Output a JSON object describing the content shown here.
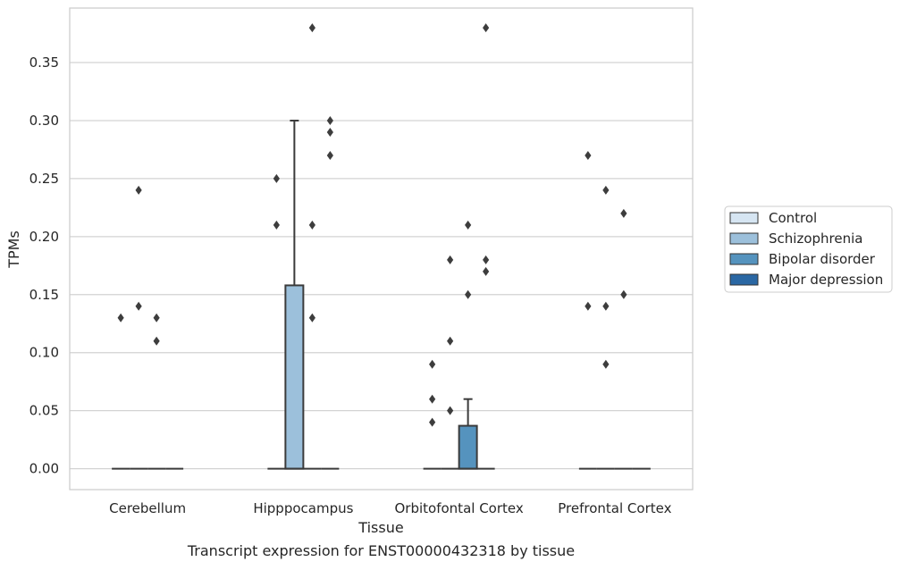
{
  "chart_data": {
    "type": "box",
    "title": "",
    "caption": "Transcript expression for ENST00000432318 by tissue",
    "xlabel": "Tissue",
    "ylabel": "TPMs",
    "ylim": [
      -0.018,
      0.397
    ],
    "yticks": [
      "0.00",
      "0.05",
      "0.10",
      "0.15",
      "0.20",
      "0.25",
      "0.30",
      "0.35"
    ],
    "grid": true,
    "legend_position": "right",
    "categories": [
      "Cerebellum",
      "Hipppocampus",
      "Orbitofontal Cortex",
      "Prefrontal Cortex"
    ],
    "series": [
      {
        "name": "Control",
        "color": "#d6e5f2"
      },
      {
        "name": "Schizophrenia",
        "color": "#9cc0db"
      },
      {
        "name": "Bipolar disorder",
        "color": "#5593be"
      },
      {
        "name": "Major depression",
        "color": "#2a67a3"
      }
    ],
    "boxes": [
      {
        "category": "Cerebellum",
        "series": "Control",
        "q1": 0,
        "median": 0,
        "q3": 0,
        "whisker_low": 0,
        "whisker_high": 0,
        "outliers": [
          0.13
        ]
      },
      {
        "category": "Cerebellum",
        "series": "Schizophrenia",
        "q1": 0,
        "median": 0,
        "q3": 0,
        "whisker_low": 0,
        "whisker_high": 0,
        "outliers": [
          0.14,
          0.24
        ]
      },
      {
        "category": "Cerebellum",
        "series": "Bipolar disorder",
        "q1": 0,
        "median": 0,
        "q3": 0,
        "whisker_low": 0,
        "whisker_high": 0,
        "outliers": [
          0.13,
          0.11
        ]
      },
      {
        "category": "Cerebellum",
        "series": "Major depression",
        "q1": 0,
        "median": 0,
        "q3": 0,
        "whisker_low": 0,
        "whisker_high": 0,
        "outliers": []
      },
      {
        "category": "Hipppocampus",
        "series": "Control",
        "q1": 0,
        "median": 0,
        "q3": 0,
        "whisker_low": 0,
        "whisker_high": 0,
        "outliers": [
          0.25,
          0.21
        ]
      },
      {
        "category": "Hipppocampus",
        "series": "Schizophrenia",
        "q1": 0,
        "median": 0,
        "q3": 0.158,
        "whisker_low": 0,
        "whisker_high": 0.3,
        "outliers": []
      },
      {
        "category": "Hipppocampus",
        "series": "Bipolar disorder",
        "q1": 0,
        "median": 0,
        "q3": 0,
        "whisker_low": 0,
        "whisker_high": 0,
        "outliers": [
          0.38,
          0.21,
          0.13
        ]
      },
      {
        "category": "Hipppocampus",
        "series": "Major depression",
        "q1": 0,
        "median": 0,
        "q3": 0,
        "whisker_low": 0,
        "whisker_high": 0,
        "outliers": [
          0.3,
          0.29,
          0.27
        ]
      },
      {
        "category": "Orbitofontal Cortex",
        "series": "Control",
        "q1": 0,
        "median": 0,
        "q3": 0,
        "whisker_low": 0,
        "whisker_high": 0,
        "outliers": [
          0.09,
          0.06,
          0.04
        ]
      },
      {
        "category": "Orbitofontal Cortex",
        "series": "Schizophrenia",
        "q1": 0,
        "median": 0,
        "q3": 0,
        "whisker_low": 0,
        "whisker_high": 0,
        "outliers": [
          0.18,
          0.11,
          0.05
        ]
      },
      {
        "category": "Orbitofontal Cortex",
        "series": "Bipolar disorder",
        "q1": 0,
        "median": 0,
        "q3": 0.037,
        "whisker_low": 0,
        "whisker_high": 0.06,
        "outliers": [
          0.21,
          0.15
        ]
      },
      {
        "category": "Orbitofontal Cortex",
        "series": "Major depression",
        "q1": 0,
        "median": 0,
        "q3": 0,
        "whisker_low": 0,
        "whisker_high": 0,
        "outliers": [
          0.38,
          0.18,
          0.17
        ]
      },
      {
        "category": "Prefrontal Cortex",
        "series": "Control",
        "q1": 0,
        "median": 0,
        "q3": 0,
        "whisker_low": 0,
        "whisker_high": 0,
        "outliers": [
          0.27,
          0.14
        ]
      },
      {
        "category": "Prefrontal Cortex",
        "series": "Schizophrenia",
        "q1": 0,
        "median": 0,
        "q3": 0,
        "whisker_low": 0,
        "whisker_high": 0,
        "outliers": [
          0.24,
          0.14,
          0.09
        ]
      },
      {
        "category": "Prefrontal Cortex",
        "series": "Bipolar disorder",
        "q1": 0,
        "median": 0,
        "q3": 0,
        "whisker_low": 0,
        "whisker_high": 0,
        "outliers": [
          0.22,
          0.15
        ]
      },
      {
        "category": "Prefrontal Cortex",
        "series": "Major depression",
        "q1": 0,
        "median": 0,
        "q3": 0,
        "whisker_low": 0,
        "whisker_high": 0,
        "outliers": []
      }
    ]
  }
}
